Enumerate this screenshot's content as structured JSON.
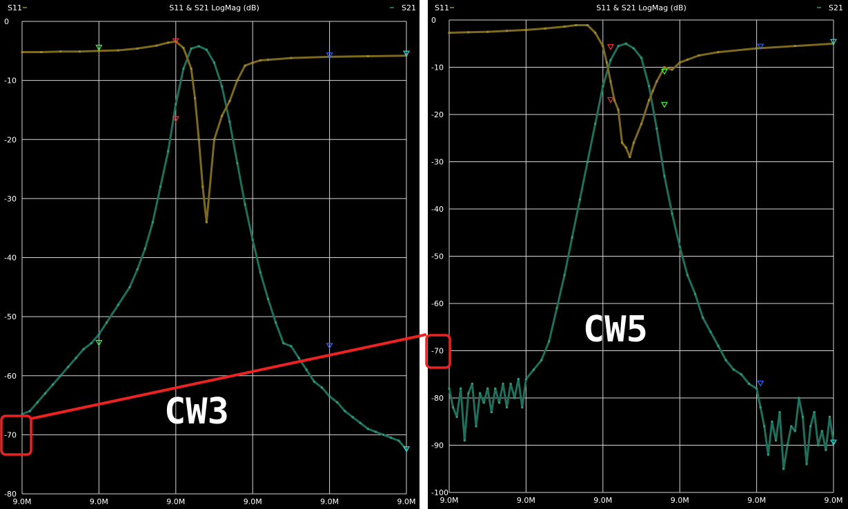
{
  "colors": {
    "background": "#000000",
    "grid": "#d8d8d8",
    "s11": "#7d6a1f",
    "s21": "#1e6f5c",
    "annotation": "#ee2222",
    "marker_red": "#ff3030",
    "marker_green": "#33ff33",
    "marker_blue": "#3366ff",
    "marker_cyan": "#33dddd",
    "divider": "#ffffff"
  },
  "annotations": {
    "left_label": "CW3",
    "right_label": "CW5"
  },
  "chart_data": [
    {
      "type": "line",
      "title": "S11 & S21 LogMag (dB)",
      "legend": [
        "S11",
        "S21"
      ],
      "legend_placement": "top-left and top-right",
      "grid": true,
      "ylim": [
        -80,
        0
      ],
      "xlim": [
        0,
        1
      ],
      "y_ticks": [
        "0",
        "-10",
        "-20",
        "-30",
        "-40",
        "-50",
        "-60",
        "-70",
        "-80"
      ],
      "x_ticks": [
        "9.0M",
        "9.0M",
        "9.0M",
        "9.0M",
        "9.0M",
        "9.0M"
      ],
      "series": [
        {
          "name": "S11",
          "x": [
            0,
            0.05,
            0.1,
            0.15,
            0.2,
            0.25,
            0.3,
            0.35,
            0.38,
            0.4,
            0.42,
            0.44,
            0.45,
            0.46,
            0.47,
            0.48,
            0.5,
            0.52,
            0.54,
            0.56,
            0.58,
            0.6,
            0.62,
            0.64,
            0.7,
            0.8,
            0.9,
            1
          ],
          "y": [
            -5.2,
            -5.2,
            -5.1,
            -5.1,
            -5,
            -4.9,
            -4.6,
            -4.1,
            -3.6,
            -3.4,
            -4.5,
            -8,
            -13,
            -20,
            -28,
            -34,
            -20,
            -16,
            -13.5,
            -10,
            -7.5,
            -7,
            -6.6,
            -6.5,
            -6.2,
            -6,
            -5.9,
            -5.8
          ]
        },
        {
          "name": "S21",
          "x": [
            0,
            0.02,
            0.04,
            0.06,
            0.08,
            0.1,
            0.12,
            0.14,
            0.16,
            0.18,
            0.2,
            0.22,
            0.25,
            0.28,
            0.3,
            0.32,
            0.34,
            0.36,
            0.38,
            0.4,
            0.42,
            0.44,
            0.46,
            0.48,
            0.5,
            0.52,
            0.54,
            0.56,
            0.58,
            0.6,
            0.62,
            0.64,
            0.66,
            0.68,
            0.7,
            0.72,
            0.74,
            0.76,
            0.78,
            0.8,
            0.82,
            0.84,
            0.86,
            0.88,
            0.9,
            0.92,
            0.94,
            0.96,
            0.98,
            1
          ],
          "y": [
            -66.5,
            -66,
            -64.5,
            -63,
            -61.5,
            -60,
            -58.5,
            -57,
            -55.5,
            -54.5,
            -53,
            -51,
            -48,
            -45,
            -42,
            -38.5,
            -34,
            -28,
            -22,
            -14,
            -8,
            -4.6,
            -4.2,
            -4.8,
            -7,
            -11,
            -17,
            -24,
            -31,
            -37,
            -42.5,
            -47,
            -51,
            -54.5,
            -55,
            -57,
            -59,
            -61,
            -62,
            -63.5,
            -64.5,
            -66,
            -67,
            -68,
            -69,
            -69.5,
            -70,
            -70.5,
            -71,
            -72.5
          ]
        }
      ],
      "markers": [
        {
          "x": 0.2,
          "y": -4.5,
          "color": "green"
        },
        {
          "x": 0.2,
          "y": -54.5,
          "color": "green"
        },
        {
          "x": 0.4,
          "y": -3.4,
          "color": "red"
        },
        {
          "x": 0.4,
          "y": -16.6,
          "color": "red"
        },
        {
          "x": 0.8,
          "y": -5.8,
          "color": "blue"
        },
        {
          "x": 0.8,
          "y": -55,
          "color": "blue"
        },
        {
          "x": 1.0,
          "y": -5.5,
          "color": "cyan"
        },
        {
          "x": 1.0,
          "y": -72.5,
          "color": "cyan"
        }
      ]
    },
    {
      "type": "line",
      "title": "S11 & S21 LogMag (dB)",
      "legend": [
        "S11",
        "S21"
      ],
      "legend_placement": "top-left and top-right",
      "grid": true,
      "ylim": [
        -100,
        0
      ],
      "xlim": [
        0,
        1
      ],
      "y_ticks": [
        "0",
        "-10",
        "-20",
        "-30",
        "-40",
        "-50",
        "-60",
        "-70",
        "-80",
        "-90",
        "-100"
      ],
      "x_ticks": [
        "9.0M",
        "9.0M",
        "9.0M",
        "9.0M",
        "9.0M",
        "9.0M"
      ],
      "series": [
        {
          "name": "S11",
          "x": [
            0,
            0.05,
            0.1,
            0.15,
            0.2,
            0.25,
            0.3,
            0.33,
            0.36,
            0.38,
            0.4,
            0.41,
            0.42,
            0.43,
            0.44,
            0.45,
            0.46,
            0.47,
            0.48,
            0.5,
            0.52,
            0.53,
            0.54,
            0.56,
            0.58,
            0.6,
            0.62,
            0.65,
            0.7,
            0.8,
            0.9,
            1
          ],
          "y": [
            -2.7,
            -2.6,
            -2.5,
            -2.3,
            -2.1,
            -1.8,
            -1.4,
            -1.1,
            -1.1,
            -2.7,
            -5.5,
            -9,
            -13,
            -17,
            -19,
            -26,
            -27,
            -29,
            -26,
            -22,
            -17,
            -15,
            -13,
            -10,
            -10.5,
            -9,
            -8.4,
            -7.5,
            -6.8,
            -6,
            -5.5,
            -5
          ]
        },
        {
          "name": "S21",
          "x": [
            0,
            0.01,
            0.02,
            0.03,
            0.04,
            0.05,
            0.06,
            0.07,
            0.08,
            0.09,
            0.1,
            0.11,
            0.12,
            0.13,
            0.14,
            0.15,
            0.16,
            0.17,
            0.18,
            0.19,
            0.2,
            0.22,
            0.24,
            0.26,
            0.28,
            0.3,
            0.32,
            0.34,
            0.36,
            0.38,
            0.4,
            0.42,
            0.44,
            0.46,
            0.48,
            0.5,
            0.52,
            0.54,
            0.56,
            0.58,
            0.6,
            0.62,
            0.64,
            0.66,
            0.68,
            0.7,
            0.72,
            0.74,
            0.76,
            0.78,
            0.8,
            0.81,
            0.82,
            0.83,
            0.84,
            0.85,
            0.86,
            0.87,
            0.88,
            0.89,
            0.9,
            0.91,
            0.92,
            0.93,
            0.94,
            0.95,
            0.96,
            0.97,
            0.98,
            0.99,
            1
          ],
          "y": [
            -78,
            -82,
            -84,
            -78,
            -89,
            -79,
            -77,
            -86,
            -79,
            -81,
            -78,
            -83,
            -78,
            -81,
            -77,
            -82,
            -77,
            -80,
            -76,
            -82,
            -76,
            -74,
            -72,
            -68,
            -61,
            -54,
            -46,
            -38,
            -30,
            -22,
            -14,
            -8.5,
            -5.5,
            -5,
            -6,
            -8,
            -14,
            -23,
            -33,
            -41,
            -48,
            -54,
            -58,
            -63,
            -66,
            -69,
            -72,
            -74,
            -75,
            -77,
            -78,
            -82,
            -86,
            -92,
            -85,
            -89,
            -83,
            -95,
            -90,
            -86,
            -87,
            -80,
            -84,
            -94,
            -86,
            -83,
            -90,
            -87,
            -91,
            -84,
            -89.5
          ]
        }
      ],
      "markers": [
        {
          "x": 0.42,
          "y": -5.8,
          "color": "red"
        },
        {
          "x": 0.42,
          "y": -17,
          "color": "red"
        },
        {
          "x": 0.56,
          "y": -11,
          "color": "green"
        },
        {
          "x": 0.56,
          "y": -18,
          "color": "green"
        },
        {
          "x": 0.81,
          "y": -5.7,
          "color": "blue"
        },
        {
          "x": 0.81,
          "y": -77,
          "color": "blue"
        },
        {
          "x": 1.0,
          "y": -4.7,
          "color": "cyan"
        },
        {
          "x": 1.0,
          "y": -89.5,
          "color": "cyan"
        }
      ]
    }
  ]
}
